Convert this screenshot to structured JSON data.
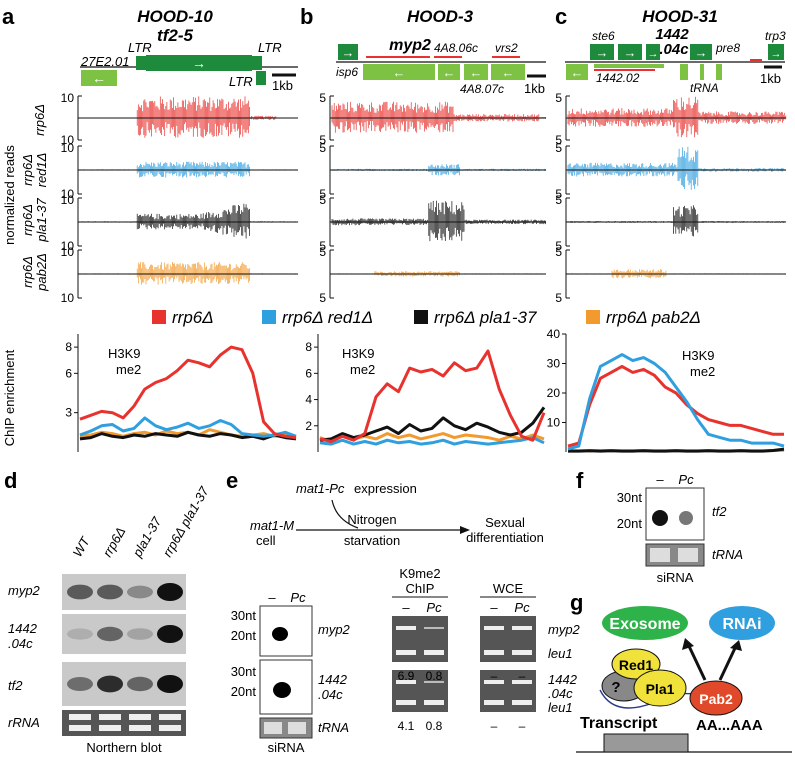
{
  "panels": {
    "a": {
      "letter": "a",
      "title": "HOOD-10",
      "gene": "tf2-5",
      "ltr1": "LTR",
      "ltr2": "LTR",
      "ltr3": "LTR",
      "left_gene": "27E2.01",
      "scale": "1kb",
      "ytop": "10",
      "ybot": "10"
    },
    "b": {
      "letter": "b",
      "title": "HOOD-3",
      "gene": "myp2",
      "g1": "4A8.06c",
      "g2": "vrs2",
      "g3": "isp6",
      "g4": "4A8.07c",
      "scale": "1kb",
      "ytop": "5",
      "ybot": "5"
    },
    "c": {
      "letter": "c",
      "title": "HOOD-31",
      "gene1": "1442",
      "gene2": ".04c",
      "g1": "ste6",
      "g2": "pre8",
      "g3": "trp3",
      "g4": "1442.02",
      "g5": "tRNA",
      "scale": "1kb",
      "ytop": "5",
      "ybot": "5"
    },
    "d": {
      "letter": "d"
    },
    "e": {
      "letter": "e"
    },
    "f": {
      "letter": "f"
    },
    "g": {
      "letter": "g"
    }
  },
  "tracks": {
    "ylabel": "normalized reads",
    "rows": [
      "rrp6Δ",
      "rrp6Δ red1Δ",
      "rrp6Δ pla1-37",
      "rrp6Δ pab2Δ"
    ],
    "row_line1": [
      "",
      "rrp6Δ",
      "rrp6Δ",
      "rrp6Δ"
    ],
    "row_line2": [
      "rrp6Δ",
      "red1Δ",
      "pla1-37",
      "pab2Δ"
    ],
    "colors": [
      "#e8322e",
      "#2f9fe0",
      "#111111",
      "#f29a2e"
    ]
  },
  "legend": [
    "rrp6Δ",
    "rrp6Δ red1Δ",
    "rrp6Δ pla1-37",
    "rrp6Δ pab2Δ"
  ],
  "chart_data": [
    {
      "type": "line",
      "title": "H3K9 me2",
      "title_l1": "H3K9",
      "title_l2": "me2",
      "ylabel": "ChIP enrichment",
      "ylim": [
        0,
        9
      ],
      "yticks": [
        "3",
        "6",
        "8"
      ],
      "yticks_values": [
        3,
        6,
        8
      ],
      "series": [
        {
          "name": "rrp6Δ",
          "values": [
            2.5,
            2.8,
            3.1,
            3.0,
            2.6,
            3.5,
            4.8,
            5.3,
            5.6,
            6.2,
            7.0,
            6.8,
            6.5,
            7.4,
            8.0,
            7.8,
            6.0,
            2.3,
            1.4,
            1.2,
            1.1
          ]
        },
        {
          "name": "rrp6Δ red1Δ",
          "values": [
            1.3,
            1.6,
            2.0,
            2.1,
            1.6,
            1.8,
            2.6,
            2.0,
            1.7,
            1.9,
            2.2,
            1.8,
            2.0,
            2.4,
            2.1,
            1.4,
            1.3,
            1.2,
            1.3,
            1.5,
            1.2
          ]
        },
        {
          "name": "rrp6Δ pla1-37",
          "values": [
            1.0,
            1.1,
            1.4,
            1.2,
            1.1,
            1.3,
            1.2,
            1.4,
            1.3,
            1.2,
            1.5,
            1.3,
            1.2,
            1.4,
            1.3,
            1.1,
            1.2,
            1.0,
            1.3,
            1.1,
            1.0
          ]
        },
        {
          "name": "rrp6Δ pab2Δ",
          "values": [
            1.2,
            1.3,
            1.5,
            1.4,
            1.2,
            1.4,
            1.5,
            1.3,
            1.6,
            1.4,
            1.5,
            1.3,
            1.7,
            1.5,
            1.3,
            1.2,
            1.3,
            1.4,
            1.2,
            1.3,
            1.2
          ]
        }
      ]
    },
    {
      "type": "line",
      "title": "H3K9 me2",
      "title_l1": "H3K9",
      "title_l2": "me2",
      "ylabel": "",
      "ylim": [
        0,
        9
      ],
      "yticks": [
        "2",
        "4",
        "6",
        "8"
      ],
      "yticks_values": [
        2,
        4,
        6,
        8
      ],
      "series": [
        {
          "name": "rrp6Δ",
          "values": [
            1.0,
            0.8,
            1.2,
            0.9,
            1.4,
            4.2,
            5.2,
            4.6,
            6.4,
            6.1,
            6.3,
            5.8,
            6.8,
            6.2,
            6.4,
            7.7,
            4.8,
            2.8,
            1.2,
            0.9,
            3.0
          ]
        },
        {
          "name": "rrp6Δ red1Δ",
          "values": [
            0.7,
            0.6,
            0.9,
            0.6,
            0.8,
            0.6,
            0.9,
            0.7,
            0.8,
            0.6,
            0.7,
            0.9,
            0.6,
            0.8,
            0.7,
            0.6,
            0.7,
            0.8,
            0.9,
            1.1,
            0.7
          ]
        },
        {
          "name": "rrp6Δ pla1-37",
          "values": [
            0.9,
            1.0,
            1.4,
            1.1,
            1.3,
            1.6,
            1.9,
            1.4,
            2.1,
            1.6,
            1.8,
            2.6,
            2.0,
            1.7,
            2.2,
            1.9,
            1.5,
            1.3,
            1.5,
            2.2,
            3.4
          ]
        },
        {
          "name": "rrp6Δ pab2Δ",
          "values": [
            1.1,
            0.8,
            1.3,
            1.0,
            1.2,
            1.0,
            1.4,
            1.1,
            1.3,
            1.0,
            1.2,
            1.4,
            1.1,
            1.3,
            1.2,
            1.1,
            0.9,
            1.2,
            1.0,
            1.3,
            1.0
          ]
        }
      ]
    },
    {
      "type": "line",
      "title": "H3K9 me2",
      "title_l1": "H3K9",
      "title_l2": "me2",
      "ylabel": "",
      "ylim": [
        0,
        40
      ],
      "yticks": [
        "10",
        "20",
        "30",
        "40"
      ],
      "yticks_values": [
        10,
        20,
        30,
        40
      ],
      "series": [
        {
          "name": "rrp6Δ",
          "values": [
            2,
            3,
            16,
            25,
            27,
            29,
            27,
            28,
            26,
            22,
            20,
            16,
            13,
            11,
            10,
            9,
            9,
            8,
            7,
            6,
            6
          ]
        },
        {
          "name": "rrp6Δ red1Δ",
          "values": [
            1,
            2,
            18,
            29,
            31,
            33,
            31,
            32,
            30,
            27,
            22,
            17,
            11,
            6,
            5,
            4,
            4,
            3,
            3,
            3,
            2
          ]
        },
        {
          "name": "rrp6Δ pla1-37",
          "values": [
            0.3,
            0.3,
            0.4,
            0.3,
            0.4,
            0.3,
            0.3,
            0.4,
            0.3,
            0.3,
            0.4,
            0.3,
            0.3,
            0.4,
            0.3,
            0.3,
            0.4,
            0.3,
            0.3,
            0.5,
            1.0
          ]
        },
        {
          "name": "rrp6Δ pab2Δ",
          "values": [
            0.4,
            0.4,
            0.5,
            0.4,
            0.5,
            0.4,
            0.4,
            0.5,
            0.4,
            0.4,
            0.5,
            0.4,
            0.4,
            0.5,
            0.4,
            0.4,
            0.5,
            0.4,
            0.4,
            0.5,
            0.6
          ]
        }
      ]
    }
  ],
  "northern": {
    "lanes": [
      "WT",
      "rrp6Δ",
      "pla1-37",
      "rrp6Δ pla1-37"
    ],
    "rows": [
      "myp2",
      "1442 .04c",
      "tf2",
      "rRNA"
    ],
    "row_l1": [
      "myp2",
      "1442",
      "tf2",
      "rRNA"
    ],
    "row_l2": [
      "",
      ".04c",
      "",
      ""
    ],
    "caption": "Northern blot"
  },
  "schematic": {
    "mat1pc": "mat1-Pc",
    "expression": "expression",
    "mat1m": "mat1-M",
    "cell": "cell",
    "nitrogen": "Nitrogen",
    "starvation": "starvation",
    "sexual": "Sexual",
    "differentiation": "differentiation"
  },
  "sirna_e": {
    "dash": "–",
    "pc": "Pc",
    "nt30": "30nt",
    "nt20": "20nt",
    "nt30b": "30nt",
    "nt20b": "20nt",
    "probe1": "myp2",
    "probe2a": "1442",
    "probe2b": ".04c",
    "trna": "tRNA",
    "caption": "siRNA"
  },
  "chip": {
    "title1": "K9me2",
    "title2": "ChIP",
    "wce": "WCE",
    "dash": "–",
    "pc": "Pc",
    "target1": "myp2",
    "control1": "leu1",
    "target2a": "1442",
    "target2b": ".04c",
    "control2": "leu1",
    "val1a": "6.9",
    "val1b": "0.8",
    "val2a": "4.1",
    "val2b": "0.8",
    "wce_dash": "–"
  },
  "sirna_f": {
    "dash": "–",
    "pc": "Pc",
    "nt30": "30nt",
    "nt20": "20nt",
    "probe": "tf2",
    "trna": "tRNA",
    "caption": "siRNA"
  },
  "model": {
    "exosome": "Exosome",
    "rnai": "RNAi",
    "red1": "Red1",
    "pla1": "Pla1",
    "pab2": "Pab2",
    "q": "?",
    "transcript": "Transcript",
    "polya": "AA...AAA"
  }
}
